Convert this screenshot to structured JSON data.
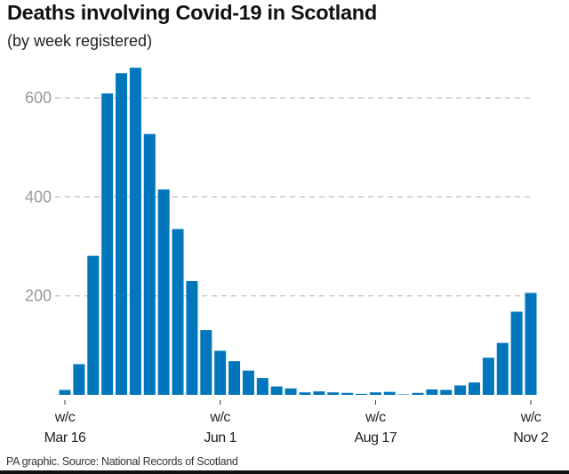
{
  "chart_data": {
    "type": "bar",
    "title": "Deaths involving Covid-19 in Scotland",
    "subtitle": "(by week registered)",
    "xlabel": "",
    "ylabel": "",
    "ylim": [
      0,
      680
    ],
    "yticks": [
      200,
      400,
      600
    ],
    "grid": true,
    "bar_color": "#0077bd",
    "categories_note_ticks": [
      {
        "index": 0,
        "line1": "w/c",
        "line2": "Mar 16"
      },
      {
        "index": 11,
        "line1": "w/c",
        "line2": "Jun 1"
      },
      {
        "index": 22,
        "line1": "w/c",
        "line2": "Aug 17"
      },
      {
        "index": 33,
        "line1": "w/c",
        "line2": "Nov 2"
      }
    ],
    "values": [
      10,
      62,
      281,
      609,
      650,
      661,
      527,
      415,
      335,
      230,
      131,
      89,
      68,
      49,
      34,
      17,
      13,
      5,
      7,
      5,
      4,
      2,
      5,
      6,
      1,
      4,
      11,
      10,
      19,
      25,
      75,
      105,
      168,
      206
    ]
  },
  "footer": "PA graphic. Source: National Records of Scotland"
}
